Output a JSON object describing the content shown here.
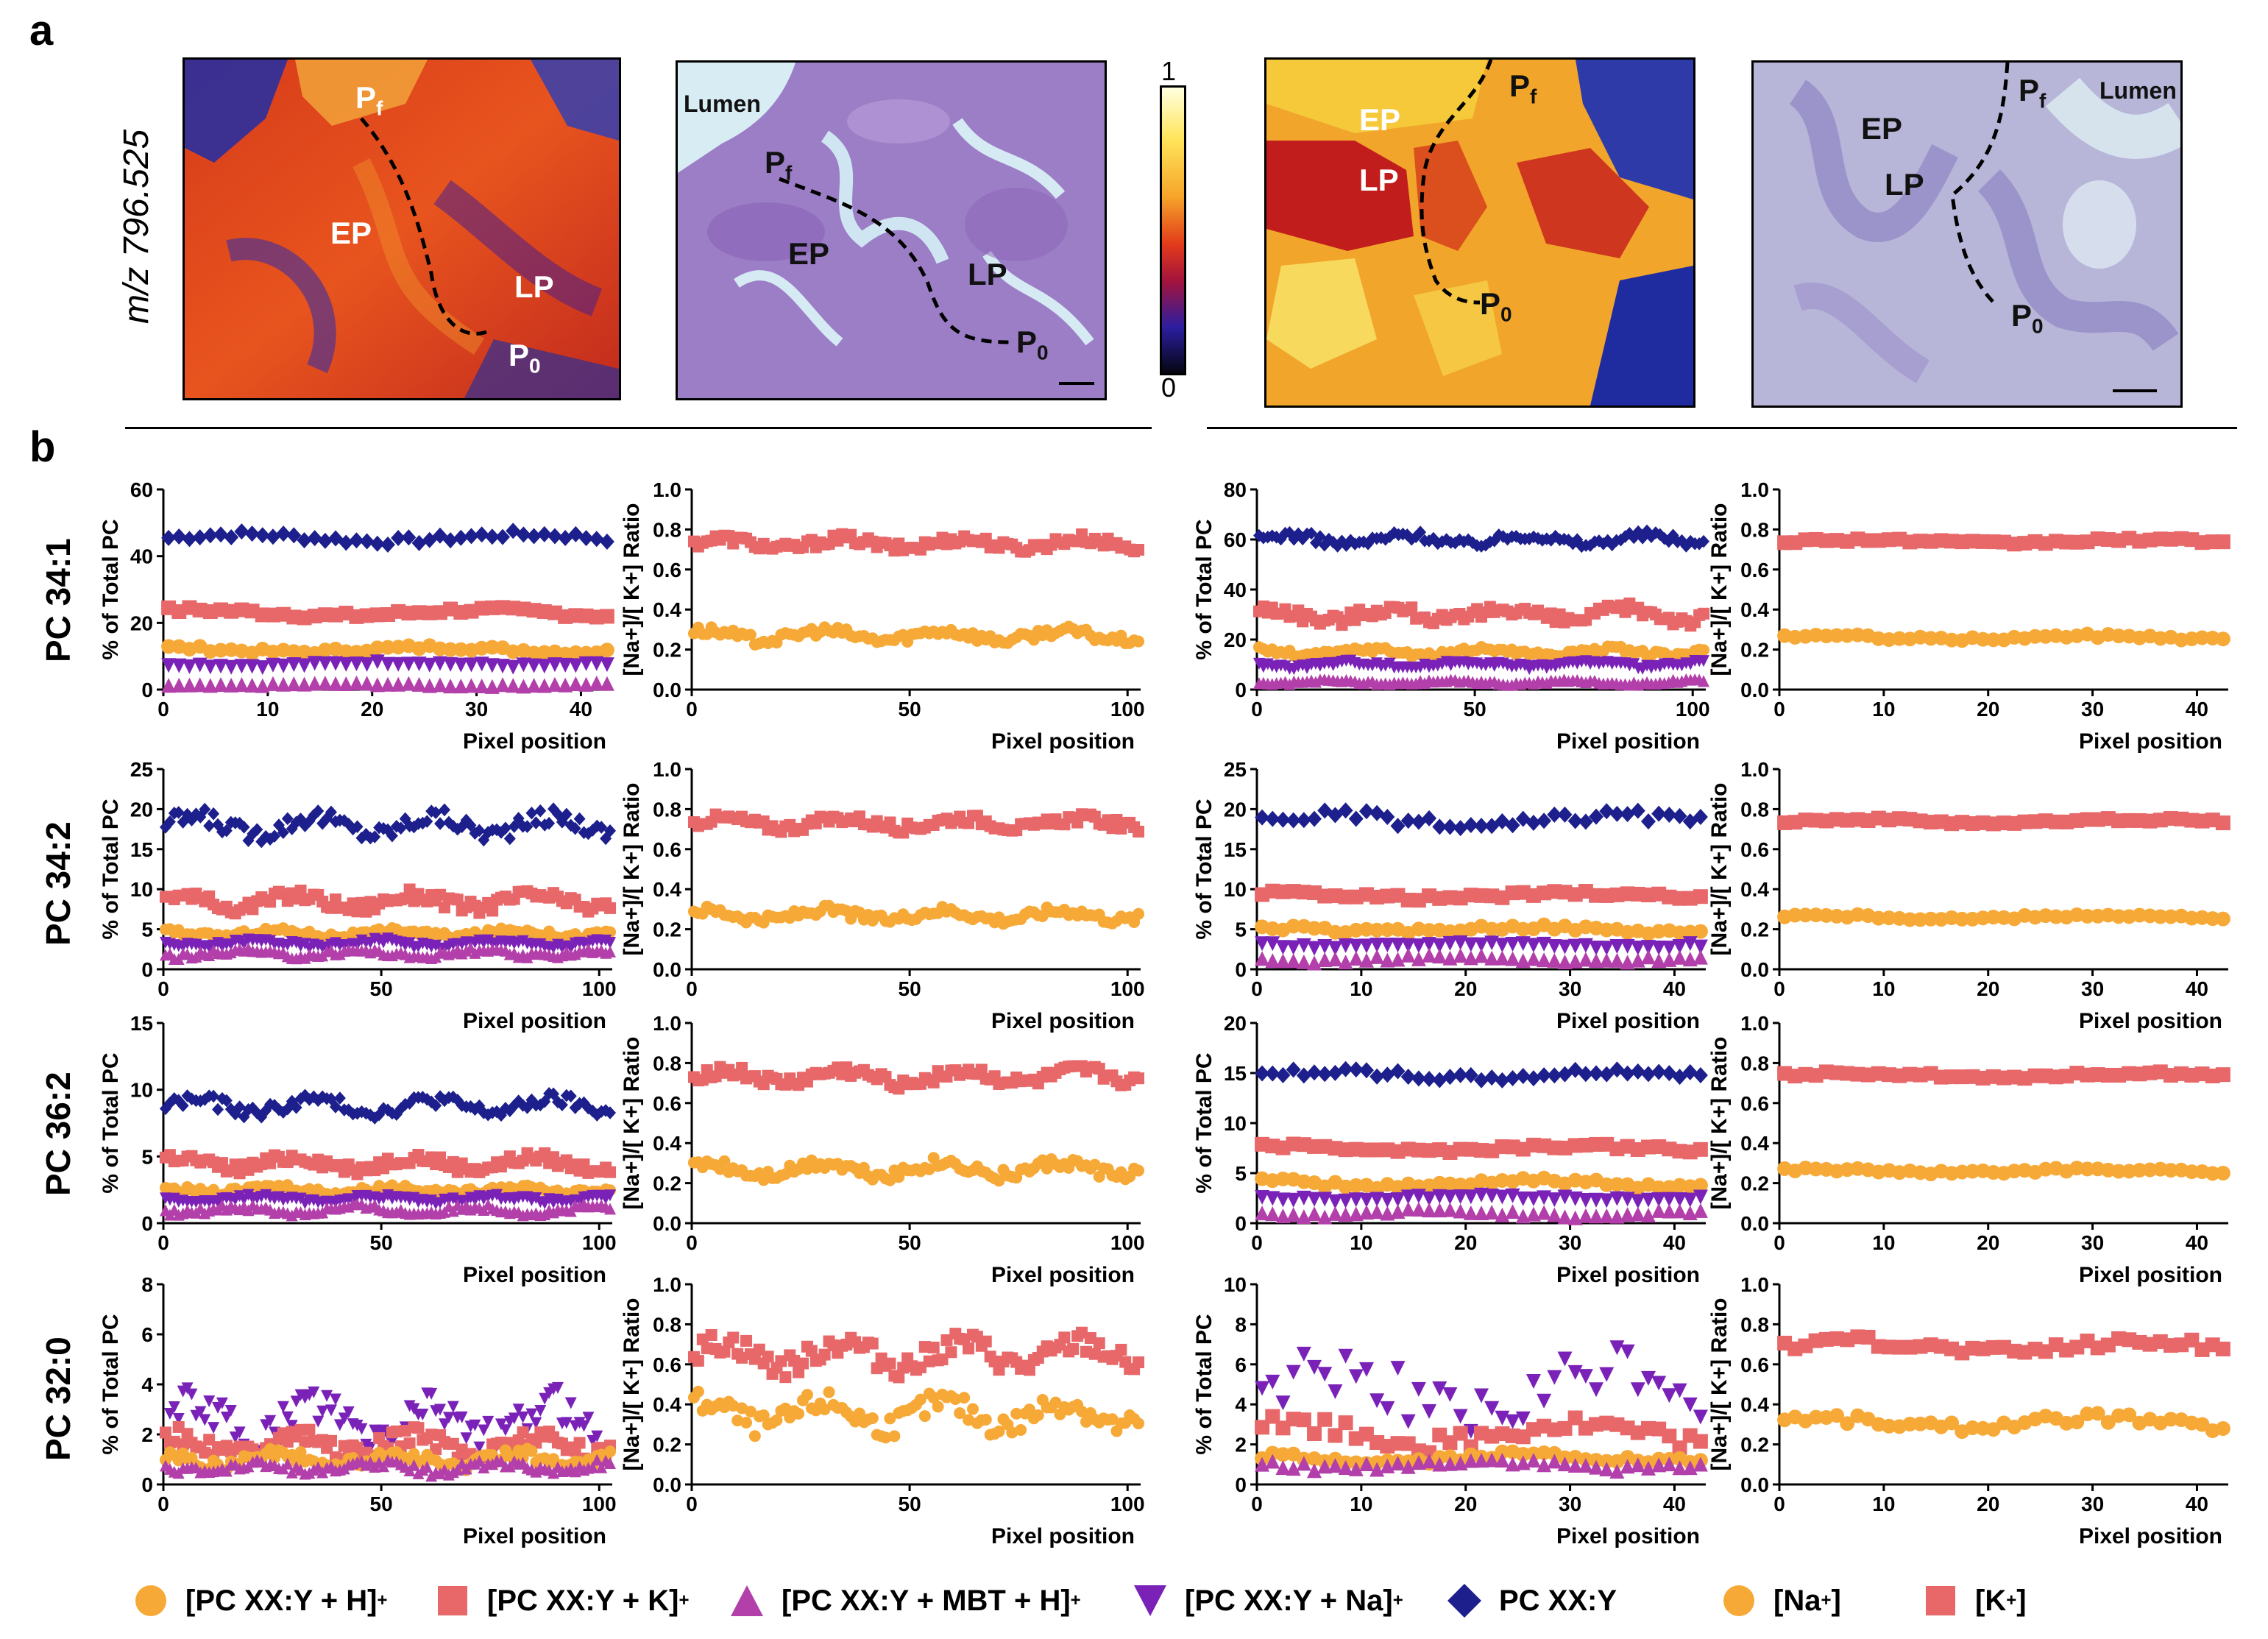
{
  "panel_a": {
    "letter": "a",
    "mz_label": "m/z 796.525",
    "colorbar": {
      "max": "1",
      "min": "0"
    },
    "images": [
      {
        "labels": [
          "P",
          "EP",
          "LP",
          "P"
        ],
        "subs": [
          "f",
          "",
          "",
          "0"
        ]
      },
      {
        "labels": [
          "Lumen",
          "P",
          "EP",
          "LP",
          "P"
        ],
        "subs": [
          "",
          "f",
          "",
          "",
          "0"
        ]
      },
      {
        "labels": [
          "EP",
          "LP",
          "P",
          "P"
        ],
        "subs": [
          "",
          "",
          "f",
          "0"
        ]
      },
      {
        "labels": [
          "Lumen",
          "EP",
          "LP",
          "P",
          "P"
        ],
        "subs": [
          "",
          "",
          "",
          "f",
          "0"
        ]
      }
    ]
  },
  "panel_b": {
    "letter": "b"
  },
  "row_labels": [
    "PC 34:1",
    "PC 34:2",
    "PC 36:2",
    "PC 32:0"
  ],
  "colors": {
    "h_adduct": "#f7a937",
    "k_adduct": "#e8686a",
    "mbt_adduct": "#b33faa",
    "na_adduct": "#7a22b8",
    "neutral": "#1c1f8c"
  },
  "legend": [
    {
      "marker": "circle",
      "color": "#f7a937",
      "text": "[PC XX:Y + H]",
      "sup": "+"
    },
    {
      "marker": "square",
      "color": "#e8686a",
      "text": "[PC XX:Y + K]",
      "sup": "+"
    },
    {
      "marker": "triangle-up",
      "color": "#b33faa",
      "text": "[PC XX:Y + MBT + H]",
      "sup": "+"
    },
    {
      "marker": "triangle-down",
      "color": "#7a22b8",
      "text": "[PC XX:Y + Na]",
      "sup": "+"
    },
    {
      "marker": "diamond",
      "color": "#1c1f8c",
      "text": "PC XX:Y",
      "sup": ""
    },
    {
      "marker": "circle",
      "color": "#f7a937",
      "text": "[Na",
      "sup": "+",
      "tail": "]"
    },
    {
      "marker": "square",
      "color": "#e8686a",
      "text": "[K",
      "sup": "+",
      "tail": "]"
    }
  ],
  "chart_data": [
    {
      "id": "r1c1",
      "type": "scatter",
      "row_label": "PC 34:1",
      "xlabel": "Pixel position",
      "ylabel": "% of Total PC",
      "xlim": [
        0,
        43
      ],
      "ylim": [
        0,
        60
      ],
      "xticks": [
        0,
        10,
        20,
        30,
        40
      ],
      "yticks": [
        0,
        20,
        40,
        60
      ],
      "n": 43,
      "series": [
        {
          "name": "PC XX:Y",
          "marker": "diamond",
          "mean": 45.5,
          "amp": 1.8
        },
        {
          "name": "[PC XX:Y + K]+",
          "marker": "square",
          "mean": 23,
          "amp": 1.5
        },
        {
          "name": "[PC XX:Y + H]+",
          "marker": "circle",
          "mean": 12,
          "amp": 1.2
        },
        {
          "name": "[PC XX:Y + Na]+",
          "marker": "triangle-down",
          "mean": 7.5,
          "amp": 0.8
        },
        {
          "name": "[PC XX:Y + MBT + H]+",
          "marker": "triangle-up",
          "mean": 1.5,
          "amp": 0.5
        }
      ]
    },
    {
      "id": "r1c2",
      "type": "scatter",
      "row_label": "PC 34:1",
      "xlabel": "Pixel position",
      "ylabel": "[Na+]/[ K+] Ratio",
      "xlim": [
        0,
        103
      ],
      "ylim": [
        0,
        1
      ],
      "xticks": [
        0,
        50,
        100
      ],
      "yticks": [
        0,
        0.2,
        0.4,
        0.6,
        0.8,
        1.0
      ],
      "n": 103,
      "series": [
        {
          "name": "[K+]",
          "marker": "square",
          "mean": 0.73,
          "amp": 0.04
        },
        {
          "name": "[Na+]",
          "marker": "circle",
          "mean": 0.27,
          "amp": 0.04
        }
      ]
    },
    {
      "id": "r1c3",
      "type": "scatter",
      "row_label": "PC 34:1",
      "xlabel": "Pixel position",
      "ylabel": "% of Total PC",
      "xlim": [
        0,
        103
      ],
      "ylim": [
        0,
        80
      ],
      "xticks": [
        0,
        50,
        100
      ],
      "yticks": [
        0,
        20,
        40,
        60,
        80
      ],
      "n": 103,
      "series": [
        {
          "name": "PC XX:Y",
          "marker": "diamond",
          "mean": 60,
          "amp": 3
        },
        {
          "name": "[PC XX:Y + K]+",
          "marker": "square",
          "mean": 30,
          "amp": 4
        },
        {
          "name": "[PC XX:Y + H]+",
          "marker": "circle",
          "mean": 15,
          "amp": 2
        },
        {
          "name": "[PC XX:Y + Na]+",
          "marker": "triangle-down",
          "mean": 10,
          "amp": 1.5
        },
        {
          "name": "[PC XX:Y + MBT + H]+",
          "marker": "triangle-up",
          "mean": 3,
          "amp": 1
        }
      ]
    },
    {
      "id": "r1c4",
      "type": "scatter",
      "row_label": "PC 34:1",
      "xlabel": "Pixel position",
      "ylabel": "[Na+]/[ K+] Ratio",
      "xlim": [
        0,
        43
      ],
      "ylim": [
        0,
        1
      ],
      "xticks": [
        0,
        10,
        20,
        30,
        40
      ],
      "yticks": [
        0,
        0.2,
        0.4,
        0.6,
        0.8,
        1.0
      ],
      "n": 43,
      "series": [
        {
          "name": "[K+]",
          "marker": "square",
          "mean": 0.74,
          "amp": 0.015
        },
        {
          "name": "[Na+]",
          "marker": "circle",
          "mean": 0.26,
          "amp": 0.015
        }
      ]
    },
    {
      "id": "r2c1",
      "type": "scatter",
      "row_label": "PC 34:2",
      "xlabel": "Pixel position",
      "ylabel": "% of Total PC",
      "xlim": [
        0,
        103
      ],
      "ylim": [
        0,
        25
      ],
      "xticks": [
        0,
        50,
        100
      ],
      "yticks": [
        0,
        5,
        10,
        15,
        20,
        25
      ],
      "n": 103,
      "series": [
        {
          "name": "PC XX:Y",
          "marker": "diamond",
          "mean": 18,
          "amp": 1.8
        },
        {
          "name": "[PC XX:Y + K]+",
          "marker": "square",
          "mean": 8.5,
          "amp": 1.3
        },
        {
          "name": "[PC XX:Y + H]+",
          "marker": "circle",
          "mean": 4.5,
          "amp": 0.6
        },
        {
          "name": "[PC XX:Y + Na]+",
          "marker": "triangle-down",
          "mean": 3.2,
          "amp": 0.6
        },
        {
          "name": "[PC XX:Y + MBT + H]+",
          "marker": "triangle-up",
          "mean": 2,
          "amp": 0.6
        }
      ]
    },
    {
      "id": "r2c2",
      "type": "scatter",
      "row_label": "PC 34:2",
      "xlabel": "Pixel position",
      "ylabel": "[Na+]/[ K+] Ratio",
      "xlim": [
        0,
        103
      ],
      "ylim": [
        0,
        1
      ],
      "xticks": [
        0,
        50,
        100
      ],
      "yticks": [
        0,
        0.2,
        0.4,
        0.6,
        0.8,
        1.0
      ],
      "n": 103,
      "series": [
        {
          "name": "[K+]",
          "marker": "square",
          "mean": 0.73,
          "amp": 0.04
        },
        {
          "name": "[Na+]",
          "marker": "circle",
          "mean": 0.27,
          "amp": 0.04
        }
      ]
    },
    {
      "id": "r2c3",
      "type": "scatter",
      "row_label": "PC 34:2",
      "xlabel": "Pixel position",
      "ylabel": "% of Total PC",
      "xlim": [
        0,
        43
      ],
      "ylim": [
        0,
        25
      ],
      "xticks": [
        0,
        10,
        20,
        30,
        40
      ],
      "yticks": [
        0,
        5,
        10,
        15,
        20,
        25
      ],
      "n": 43,
      "series": [
        {
          "name": "PC XX:Y",
          "marker": "diamond",
          "mean": 18.5,
          "amp": 1.2
        },
        {
          "name": "[PC XX:Y + K]+",
          "marker": "square",
          "mean": 9.2,
          "amp": 0.5
        },
        {
          "name": "[PC XX:Y + H]+",
          "marker": "circle",
          "mean": 5,
          "amp": 0.5
        },
        {
          "name": "[PC XX:Y + Na]+",
          "marker": "triangle-down",
          "mean": 3,
          "amp": 0.4
        },
        {
          "name": "[PC XX:Y + MBT + H]+",
          "marker": "triangle-up",
          "mean": 1.3,
          "amp": 0.5
        }
      ]
    },
    {
      "id": "r2c4",
      "type": "scatter",
      "row_label": "PC 34:2",
      "xlabel": "Pixel position",
      "ylabel": "[Na+]/[ K+] Ratio",
      "xlim": [
        0,
        43
      ],
      "ylim": [
        0,
        1
      ],
      "xticks": [
        0,
        10,
        20,
        30,
        40
      ],
      "yticks": [
        0,
        0.2,
        0.4,
        0.6,
        0.8,
        1.0
      ],
      "n": 43,
      "series": [
        {
          "name": "[K+]",
          "marker": "square",
          "mean": 0.74,
          "amp": 0.015
        },
        {
          "name": "[Na+]",
          "marker": "circle",
          "mean": 0.26,
          "amp": 0.015
        }
      ]
    },
    {
      "id": "r3c1",
      "type": "scatter",
      "row_label": "PC 36:2",
      "xlabel": "Pixel position",
      "ylabel": "% of Total PC",
      "xlim": [
        0,
        103
      ],
      "ylim": [
        0,
        15
      ],
      "xticks": [
        0,
        50,
        100
      ],
      "yticks": [
        0,
        5,
        10,
        15
      ],
      "n": 103,
      "series": [
        {
          "name": "PC XX:Y",
          "marker": "diamond",
          "mean": 8.8,
          "amp": 0.8
        },
        {
          "name": "[PC XX:Y + K]+",
          "marker": "square",
          "mean": 4.5,
          "amp": 0.7
        },
        {
          "name": "[PC XX:Y + H]+",
          "marker": "circle",
          "mean": 2.5,
          "amp": 0.4
        },
        {
          "name": "[PC XX:Y + Na]+",
          "marker": "triangle-down",
          "mean": 1.8,
          "amp": 0.3
        },
        {
          "name": "[PC XX:Y + MBT + H]+",
          "marker": "triangle-up",
          "mean": 1,
          "amp": 0.4
        }
      ]
    },
    {
      "id": "r3c2",
      "type": "scatter",
      "row_label": "PC 36:2",
      "xlabel": "Pixel position",
      "ylabel": "[Na+]/[ K+] Ratio",
      "xlim": [
        0,
        103
      ],
      "ylim": [
        0,
        1
      ],
      "xticks": [
        0,
        50,
        100
      ],
      "yticks": [
        0,
        0.2,
        0.4,
        0.6,
        0.8,
        1.0
      ],
      "n": 103,
      "series": [
        {
          "name": "[K+]",
          "marker": "square",
          "mean": 0.73,
          "amp": 0.05
        },
        {
          "name": "[Na+]",
          "marker": "circle",
          "mean": 0.27,
          "amp": 0.05
        }
      ]
    },
    {
      "id": "r3c3",
      "type": "scatter",
      "row_label": "PC 36:2",
      "xlabel": "Pixel position",
      "ylabel": "% of Total PC",
      "xlim": [
        0,
        43
      ],
      "ylim": [
        0,
        20
      ],
      "xticks": [
        0,
        10,
        20,
        30,
        40
      ],
      "yticks": [
        0,
        5,
        10,
        15,
        20
      ],
      "n": 43,
      "series": [
        {
          "name": "PC XX:Y",
          "marker": "diamond",
          "mean": 14.8,
          "amp": 0.6
        },
        {
          "name": "[PC XX:Y + K]+",
          "marker": "square",
          "mean": 7.5,
          "amp": 0.4
        },
        {
          "name": "[PC XX:Y + H]+",
          "marker": "circle",
          "mean": 4,
          "amp": 0.5
        },
        {
          "name": "[PC XX:Y + Na]+",
          "marker": "triangle-down",
          "mean": 2.5,
          "amp": 0.3
        },
        {
          "name": "[PC XX:Y + MBT + H]+",
          "marker": "triangle-up",
          "mean": 1,
          "amp": 0.4
        }
      ]
    },
    {
      "id": "r3c4",
      "type": "scatter",
      "row_label": "PC 36:2",
      "xlabel": "Pixel position",
      "ylabel": "[Na+]/[ K+] Ratio",
      "xlim": [
        0,
        43
      ],
      "ylim": [
        0,
        1
      ],
      "xticks": [
        0,
        10,
        20,
        30,
        40
      ],
      "yticks": [
        0,
        0.2,
        0.4,
        0.6,
        0.8,
        1.0
      ],
      "n": 43,
      "series": [
        {
          "name": "[K+]",
          "marker": "square",
          "mean": 0.74,
          "amp": 0.015
        },
        {
          "name": "[Na+]",
          "marker": "circle",
          "mean": 0.26,
          "amp": 0.015
        }
      ]
    },
    {
      "id": "r4c1",
      "type": "scatter",
      "row_label": "PC 32:0",
      "xlabel": "Pixel position",
      "ylabel": "% of Total PC",
      "xlim": [
        0,
        103
      ],
      "ylim": [
        0,
        8
      ],
      "xticks": [
        0,
        50,
        100
      ],
      "yticks": [
        0,
        2,
        4,
        6,
        8
      ],
      "n": 103,
      "series": [
        {
          "name": "[PC XX:Y + Na]+",
          "marker": "triangle-down",
          "mean": 2.5,
          "amp": 1.2
        },
        {
          "name": "[PC XX:Y + K]+",
          "marker": "square",
          "mean": 1.6,
          "amp": 0.6
        },
        {
          "name": "[PC XX:Y + H]+",
          "marker": "circle",
          "mean": 1,
          "amp": 0.4
        },
        {
          "name": "[PC XX:Y + MBT + H]+",
          "marker": "triangle-up",
          "mean": 0.7,
          "amp": 0.3
        }
      ]
    },
    {
      "id": "r4c2",
      "type": "scatter",
      "row_label": "PC 32:0",
      "xlabel": "Pixel position",
      "ylabel": "[Na+]/[ K+] Ratio",
      "xlim": [
        0,
        103
      ],
      "ylim": [
        0,
        1
      ],
      "xticks": [
        0,
        50,
        100
      ],
      "yticks": [
        0,
        0.2,
        0.4,
        0.6,
        0.8,
        1.0
      ],
      "n": 103,
      "series": [
        {
          "name": "[K+]",
          "marker": "square",
          "mean": 0.65,
          "amp": 0.1
        },
        {
          "name": "[Na+]",
          "marker": "circle",
          "mean": 0.35,
          "amp": 0.1
        }
      ]
    },
    {
      "id": "r4c3",
      "type": "scatter",
      "row_label": "PC 32:0",
      "xlabel": "Pixel position",
      "ylabel": "% of Total PC",
      "xlim": [
        0,
        43
      ],
      "ylim": [
        0,
        10
      ],
      "xticks": [
        0,
        10,
        20,
        30,
        40
      ],
      "yticks": [
        0,
        2,
        4,
        6,
        8,
        10
      ],
      "n": 43,
      "series": [
        {
          "name": "[PC XX:Y + Na]+",
          "marker": "triangle-down",
          "mean": 4.5,
          "amp": 2.2
        },
        {
          "name": "[PC XX:Y + K]+",
          "marker": "square",
          "mean": 2.5,
          "amp": 0.8
        },
        {
          "name": "[PC XX:Y + H]+",
          "marker": "circle",
          "mean": 1.3,
          "amp": 0.3
        },
        {
          "name": "[PC XX:Y + MBT + H]+",
          "marker": "triangle-up",
          "mean": 1,
          "amp": 0.3
        }
      ]
    },
    {
      "id": "r4c4",
      "type": "scatter",
      "row_label": "PC 32:0",
      "xlabel": "Pixel position",
      "ylabel": "[Na+]/[ K+] Ratio",
      "xlim": [
        0,
        43
      ],
      "ylim": [
        0,
        1
      ],
      "xticks": [
        0,
        10,
        20,
        30,
        40
      ],
      "yticks": [
        0,
        0.2,
        0.4,
        0.6,
        0.8,
        1.0
      ],
      "n": 43,
      "series": [
        {
          "name": "[K+]",
          "marker": "square",
          "mean": 0.69,
          "amp": 0.04
        },
        {
          "name": "[Na+]",
          "marker": "circle",
          "mean": 0.31,
          "amp": 0.04
        }
      ]
    }
  ]
}
